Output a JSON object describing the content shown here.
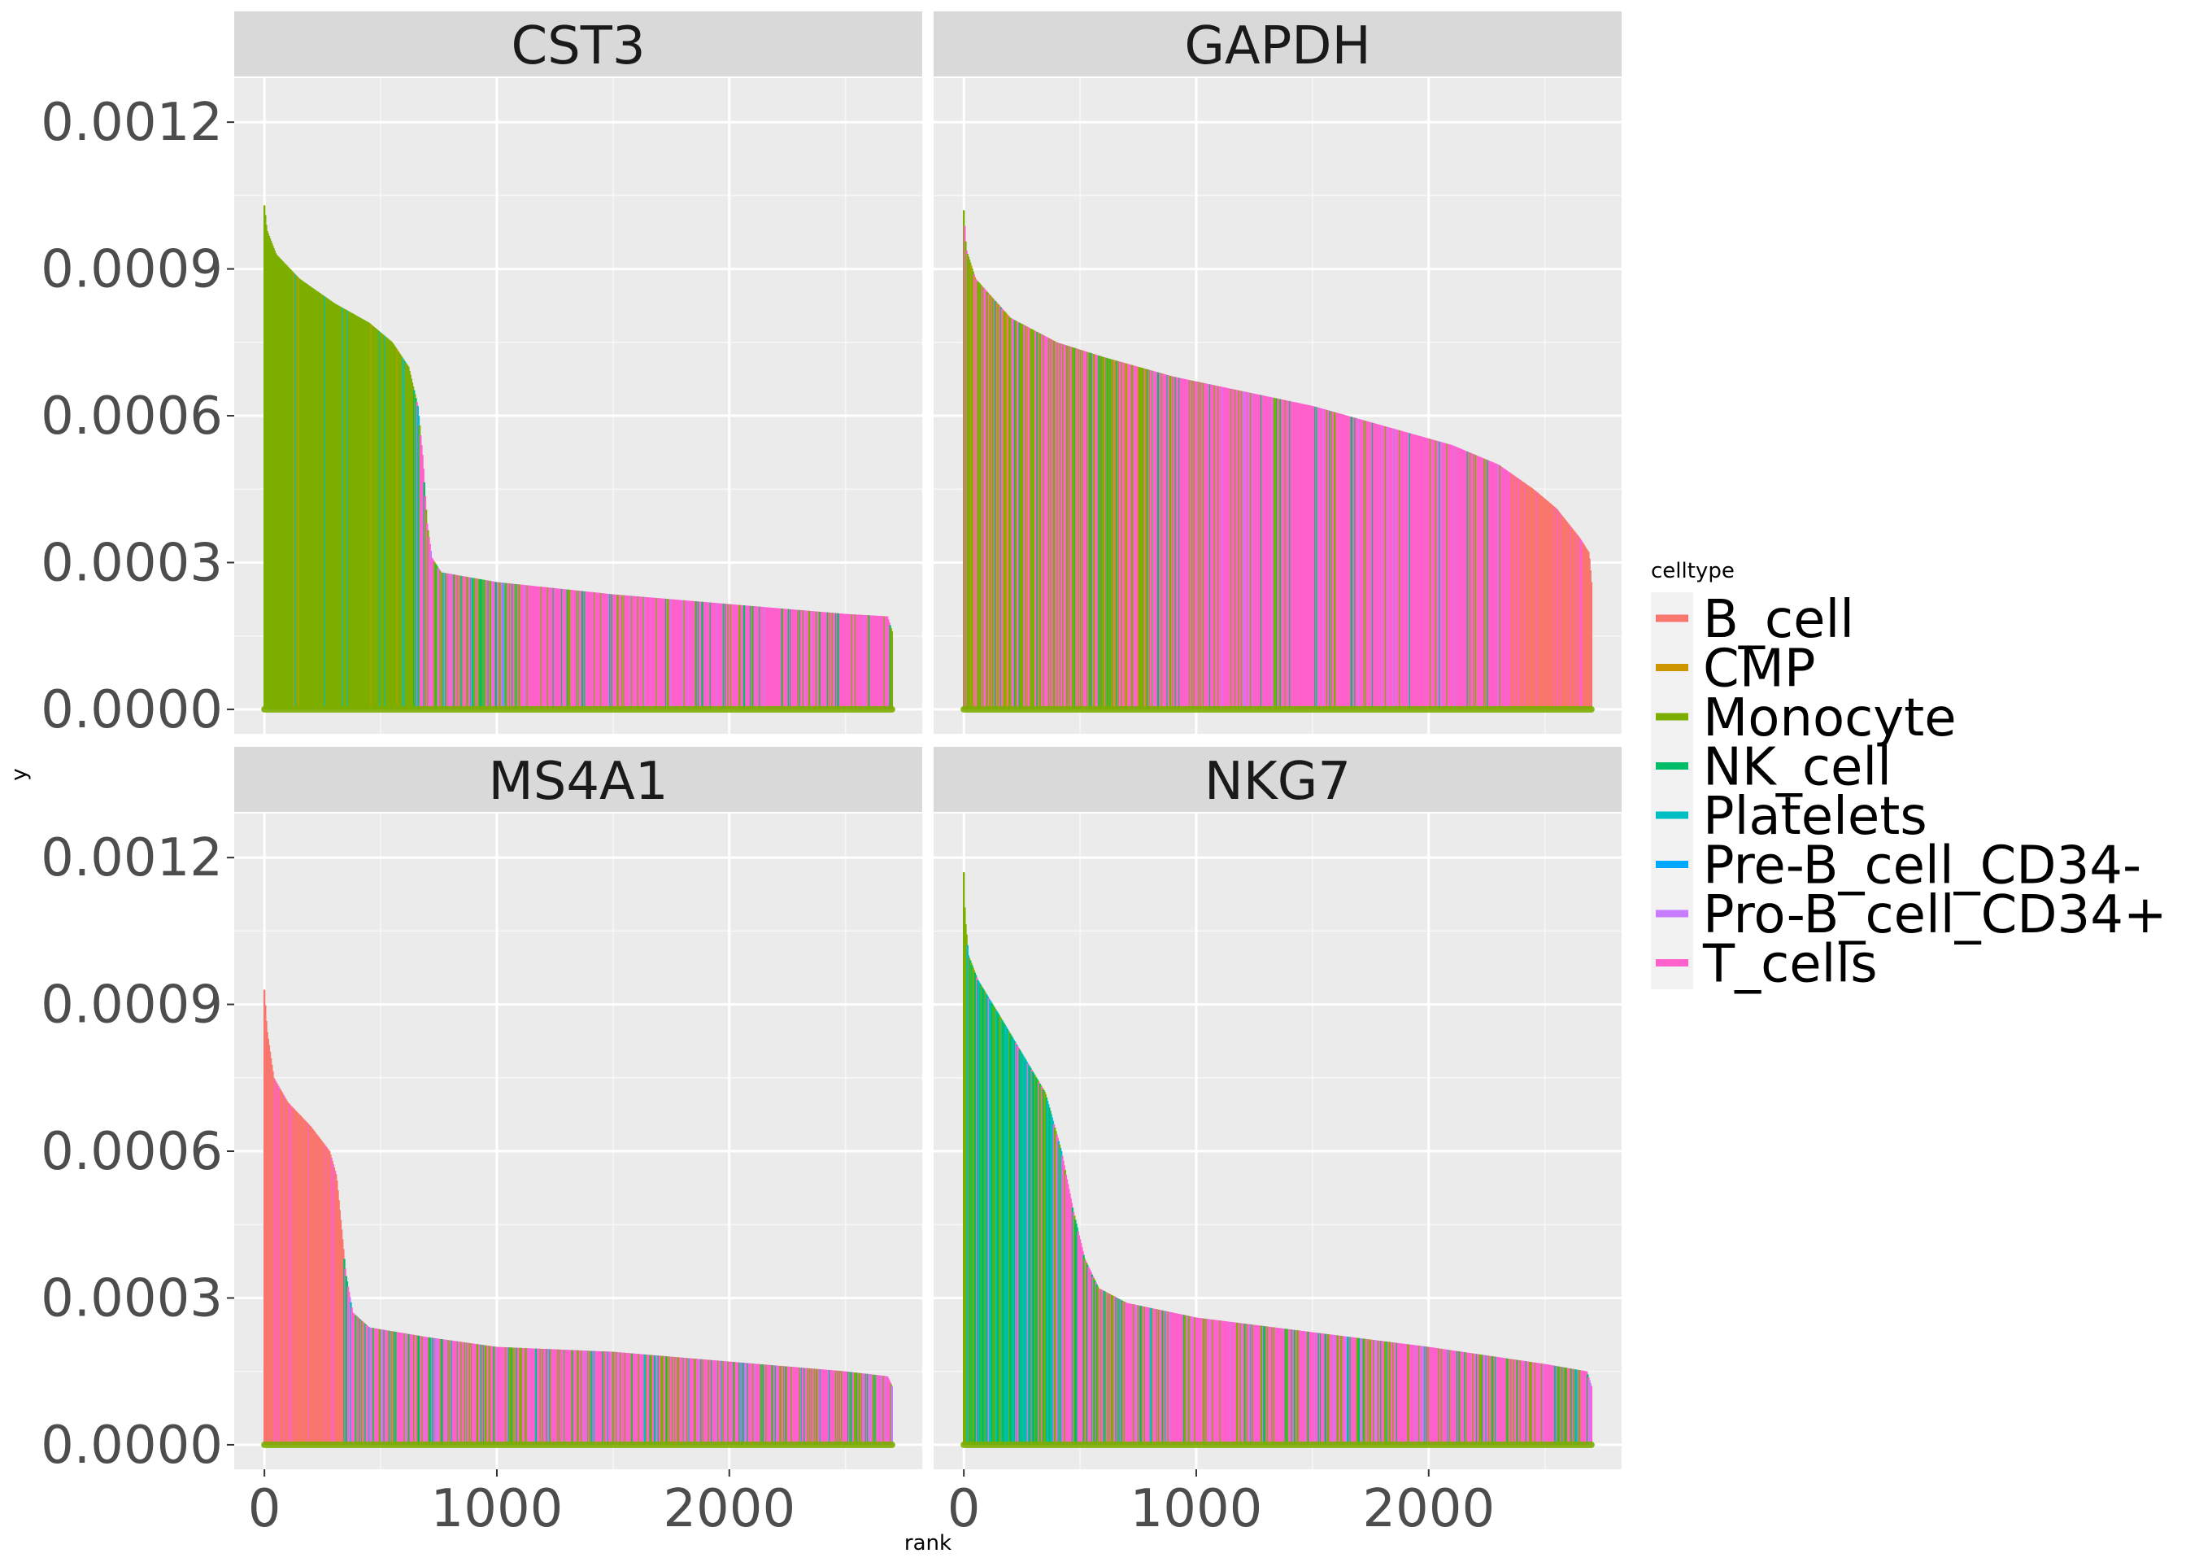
{
  "chart_data": {
    "type": "area",
    "description_free": true,
    "xlabel": "rank",
    "ylabel": "y",
    "xlim": [
      -130,
      2830
    ],
    "ylim": [
      -5e-05,
      0.00129
    ],
    "x_ticks": [
      0,
      1000,
      2000
    ],
    "y_ticks": [
      0.0,
      0.0003,
      0.0006,
      0.0009,
      0.0012
    ],
    "y_tick_labels": [
      "0.0000",
      "0.0003",
      "0.0006",
      "0.0009",
      "0.0012"
    ],
    "x_tick_labels": [
      "0",
      "1000",
      "2000"
    ],
    "grid": true,
    "legend": {
      "title": "celltype",
      "position": "right",
      "entries": [
        {
          "name": "B_cell",
          "color": "#F8766D"
        },
        {
          "name": "CMP",
          "color": "#CD9600"
        },
        {
          "name": "Monocyte",
          "color": "#7CAE00"
        },
        {
          "name": "NK_cell",
          "color": "#00BE67"
        },
        {
          "name": "Platelets",
          "color": "#00BFC4"
        },
        {
          "name": "Pre-B_cell_CD34-",
          "color": "#00A9FF"
        },
        {
          "name": "Pro-B_cell_CD34+",
          "color": "#C77CFF"
        },
        {
          "name": "T_cells",
          "color": "#FF61CC"
        }
      ]
    },
    "panels": [
      {
        "gene": "CST3",
        "curve": [
          [
            0,
            0.00103
          ],
          [
            10,
            0.00098
          ],
          [
            50,
            0.00093
          ],
          [
            150,
            0.00088
          ],
          [
            300,
            0.00083
          ],
          [
            450,
            0.00079
          ],
          [
            550,
            0.00075
          ],
          [
            620,
            0.0007
          ],
          [
            660,
            0.00062
          ],
          [
            680,
            0.00052
          ],
          [
            700,
            0.00038
          ],
          [
            720,
            0.00031
          ],
          [
            760,
            0.00028
          ],
          [
            1000,
            0.00026
          ],
          [
            1500,
            0.000235
          ],
          [
            2000,
            0.000215
          ],
          [
            2500,
            0.000195
          ],
          [
            2680,
            0.00019
          ],
          [
            2700,
            0.00016
          ]
        ],
        "segments": [
          {
            "from": 0,
            "to": 640,
            "celltype": "Monocyte"
          },
          {
            "from": 640,
            "to": 1100,
            "celltype": "mixed"
          },
          {
            "from": 1100,
            "to": 2700,
            "celltype": "T_cells"
          }
        ]
      },
      {
        "gene": "GAPDH",
        "curve": [
          [
            0,
            0.00102
          ],
          [
            10,
            0.00094
          ],
          [
            50,
            0.00088
          ],
          [
            200,
            0.0008
          ],
          [
            400,
            0.00075
          ],
          [
            600,
            0.00072
          ],
          [
            900,
            0.00068
          ],
          [
            1200,
            0.00065
          ],
          [
            1500,
            0.00062
          ],
          [
            1800,
            0.00058
          ],
          [
            2100,
            0.00054
          ],
          [
            2300,
            0.0005
          ],
          [
            2450,
            0.00045
          ],
          [
            2550,
            0.00041
          ],
          [
            2650,
            0.00035
          ],
          [
            2690,
            0.00032
          ],
          [
            2700,
            0.00026
          ]
        ],
        "segments": [
          {
            "from": 0,
            "to": 800,
            "celltype": "mixed-monocyte"
          },
          {
            "from": 800,
            "to": 2350,
            "celltype": "T_cells"
          },
          {
            "from": 2350,
            "to": 2700,
            "celltype": "B_cell"
          }
        ]
      },
      {
        "gene": "MS4A1",
        "curve": [
          [
            0,
            0.00093
          ],
          [
            10,
            0.00085
          ],
          [
            40,
            0.00075
          ],
          [
            100,
            0.0007
          ],
          [
            200,
            0.00065
          ],
          [
            280,
            0.0006
          ],
          [
            310,
            0.00055
          ],
          [
            330,
            0.00045
          ],
          [
            350,
            0.00035
          ],
          [
            380,
            0.00027
          ],
          [
            450,
            0.00024
          ],
          [
            700,
            0.00022
          ],
          [
            1000,
            0.0002
          ],
          [
            1500,
            0.00019
          ],
          [
            2000,
            0.00017
          ],
          [
            2500,
            0.00015
          ],
          [
            2680,
            0.00014
          ],
          [
            2700,
            0.00012
          ]
        ],
        "segments": [
          {
            "from": 0,
            "to": 340,
            "celltype": "B_cell"
          },
          {
            "from": 340,
            "to": 2700,
            "celltype": "mixed-tcells"
          }
        ]
      },
      {
        "gene": "NKG7",
        "curve": [
          [
            0,
            0.00117
          ],
          [
            5,
            0.00108
          ],
          [
            20,
            0.001
          ],
          [
            60,
            0.00095
          ],
          [
            150,
            0.00088
          ],
          [
            250,
            0.0008
          ],
          [
            350,
            0.00072
          ],
          [
            420,
            0.0006
          ],
          [
            470,
            0.00048
          ],
          [
            520,
            0.00038
          ],
          [
            580,
            0.00032
          ],
          [
            700,
            0.00029
          ],
          [
            1000,
            0.00026
          ],
          [
            1500,
            0.00023
          ],
          [
            2000,
            0.0002
          ],
          [
            2500,
            0.000165
          ],
          [
            2680,
            0.00015
          ],
          [
            2700,
            0.00012
          ]
        ],
        "segments": [
          {
            "from": 0,
            "to": 420,
            "celltype": "NK_cell"
          },
          {
            "from": 420,
            "to": 2700,
            "celltype": "mixed-tcells"
          }
        ]
      }
    ]
  }
}
